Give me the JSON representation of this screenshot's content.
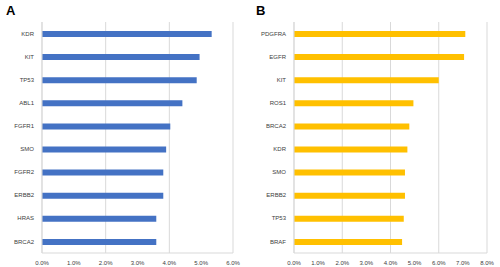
{
  "chart_data": [
    {
      "type": "bar",
      "title": "A",
      "orientation": "horizontal",
      "grid": true,
      "categories": [
        "KDR",
        "KIT",
        "TP53",
        "ABL1",
        "FGFR1",
        "SMO",
        "FGFR2",
        "ERBB2",
        "HRAS",
        "BRCA2"
      ],
      "values": [
        5.33,
        4.95,
        4.86,
        4.41,
        4.03,
        3.9,
        3.81,
        3.81,
        3.59,
        3.59
      ],
      "color": "#4472c4",
      "xlim": [
        0,
        6
      ],
      "xticks": [
        {
          "value": 0,
          "label": "0.0%"
        },
        {
          "value": 1,
          "label": "1.0%"
        },
        {
          "value": 2,
          "label": "2.0%"
        },
        {
          "value": 3,
          "label": "3.0%"
        },
        {
          "value": 4,
          "label": "4.0%"
        },
        {
          "value": 5,
          "label": "5.0%"
        },
        {
          "value": 6,
          "label": "6.0%"
        }
      ]
    },
    {
      "type": "bar",
      "title": "B",
      "orientation": "horizontal",
      "grid": true,
      "categories": [
        "PDGFRA",
        "EGFR",
        "KIT",
        "ROS1",
        "BRCA2",
        "KDR",
        "SMO",
        "ERBB2",
        "TP53",
        "BRAF"
      ],
      "values": [
        7.1,
        7.05,
        6.0,
        4.95,
        4.78,
        4.7,
        4.6,
        4.6,
        4.55,
        4.48
      ],
      "color": "#ffc000",
      "xlim": [
        0,
        8
      ],
      "xticks": [
        {
          "value": 0,
          "label": "0.0%"
        },
        {
          "value": 1,
          "label": "1.0%"
        },
        {
          "value": 2,
          "label": "2.0%"
        },
        {
          "value": 3,
          "label": "3.0%"
        },
        {
          "value": 4,
          "label": "4.0%"
        },
        {
          "value": 5,
          "label": "5.0%"
        },
        {
          "value": 6,
          "label": "6.0%"
        },
        {
          "value": 7,
          "label": "7.0%"
        },
        {
          "value": 8,
          "label": "8.0%"
        }
      ]
    }
  ]
}
